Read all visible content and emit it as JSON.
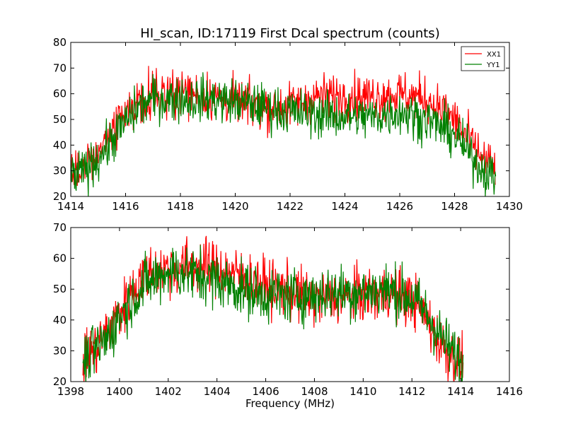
{
  "title": "HI_scan, ID:17119 First Dcal spectrum (counts)",
  "colors": {
    "XX1": "#ff0000",
    "YY1": "#008000"
  },
  "chart_data": [
    {
      "type": "line",
      "title": "HI_scan, ID:17119 First Dcal spectrum (counts)",
      "xlabel": "",
      "ylabel": "",
      "xlim": [
        1414,
        1430
      ],
      "ylim": [
        20,
        80
      ],
      "xticks": [
        "1414",
        "1416",
        "1418",
        "1420",
        "1422",
        "1424",
        "1426",
        "1428",
        "1430"
      ],
      "yticks": [
        "20",
        "30",
        "40",
        "50",
        "60",
        "70",
        "80"
      ],
      "grid": false,
      "legend": "top-right",
      "noise": 4.5,
      "series": [
        {
          "name": "XX1",
          "color": "#ff0000",
          "x": [
            1414.0,
            1414.5,
            1415.0,
            1415.5,
            1416.0,
            1416.5,
            1417.0,
            1418.0,
            1419.0,
            1420.0,
            1421.0,
            1422.0,
            1423.0,
            1424.0,
            1425.0,
            1426.0,
            1427.0,
            1427.5,
            1428.0,
            1428.5,
            1429.0,
            1429.5
          ],
          "y": [
            29,
            32,
            37,
            44,
            51,
            58,
            60,
            61,
            59,
            57,
            55,
            55,
            59,
            59,
            59,
            60,
            58,
            54,
            50,
            42,
            35,
            31
          ]
        },
        {
          "name": "YY1",
          "color": "#008000",
          "x": [
            1414.0,
            1414.5,
            1415.0,
            1415.5,
            1416.0,
            1416.5,
            1417.0,
            1418.0,
            1419.0,
            1420.0,
            1421.0,
            1422.0,
            1423.0,
            1424.0,
            1425.0,
            1426.0,
            1427.0,
            1427.5,
            1428.0,
            1428.5,
            1429.0,
            1429.5
          ],
          "y": [
            27,
            30,
            35,
            42,
            49,
            55,
            58,
            58,
            58,
            57,
            55,
            53,
            52,
            51,
            51,
            53,
            50,
            47,
            44,
            37,
            31,
            27
          ]
        }
      ]
    },
    {
      "type": "line",
      "title": "",
      "xlabel": "Frequency (MHz)",
      "ylabel": "",
      "xlim": [
        1398,
        1416
      ],
      "ylim": [
        20,
        70
      ],
      "xticks": [
        "1398",
        "1400",
        "1402",
        "1404",
        "1406",
        "1408",
        "1410",
        "1412",
        "1414",
        "1416"
      ],
      "yticks": [
        "20",
        "30",
        "40",
        "50",
        "60",
        "70"
      ],
      "grid": false,
      "noise": 4.5,
      "series": [
        {
          "name": "XX1",
          "color": "#ff0000",
          "x": [
            1398.5,
            1399.0,
            1399.5,
            1400.0,
            1400.5,
            1401.0,
            1402.0,
            1403.0,
            1404.0,
            1405.0,
            1406.0,
            1407.0,
            1408.0,
            1409.0,
            1410.0,
            1411.0,
            1412.0,
            1412.5,
            1413.0,
            1413.5,
            1414.1
          ],
          "y": [
            27,
            31,
            36,
            42,
            49,
            55,
            57,
            58,
            57,
            54,
            51,
            49,
            47,
            47,
            48,
            49,
            47,
            42,
            35,
            29,
            26
          ]
        },
        {
          "name": "YY1",
          "color": "#008000",
          "x": [
            1398.5,
            1399.0,
            1399.5,
            1400.0,
            1400.5,
            1401.0,
            1402.0,
            1403.0,
            1404.0,
            1405.0,
            1406.0,
            1407.0,
            1408.0,
            1409.0,
            1410.0,
            1411.0,
            1412.0,
            1412.5,
            1413.0,
            1413.5,
            1414.1
          ],
          "y": [
            26,
            30,
            34,
            41,
            47,
            51,
            56,
            55,
            53,
            50,
            48,
            48,
            48,
            49,
            49,
            50,
            47,
            43,
            37,
            31,
            26
          ]
        }
      ]
    }
  ]
}
